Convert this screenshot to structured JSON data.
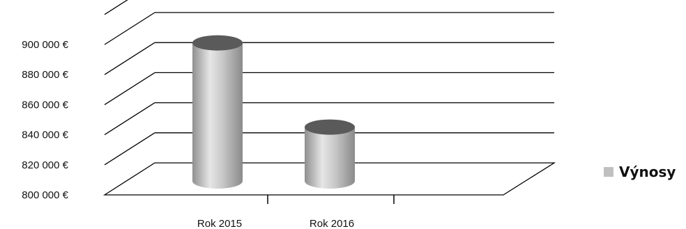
{
  "chart_data": {
    "type": "bar",
    "style": "3d-cylinder",
    "categories": [
      "Rok 2015",
      "Rok 2016"
    ],
    "series": [
      {
        "name": "Výnosy",
        "values": [
          896000,
          840000
        ]
      }
    ],
    "yticks": [
      "800 000 €",
      "820 000 €",
      "840 000 €",
      "860 000 €",
      "880 000 €",
      "900 000 €"
    ],
    "ylim": [
      800000,
      900000
    ],
    "grid": true,
    "legend_position": "right",
    "colors": {
      "bar_side": "#b8b8b8",
      "bar_top": "#5a5a5a",
      "legend_swatch": "#c0c0c0",
      "gridline": "#000000"
    }
  }
}
